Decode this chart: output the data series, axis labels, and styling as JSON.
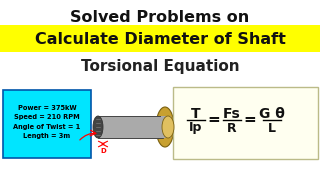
{
  "bg_color": "#ffffff",
  "title_line1": "Solved Problems on",
  "title_line2": "Calculate Diameter of Shaft",
  "title_line3": "Torsional Equation",
  "yellow_bg": "#ffff00",
  "info_box_bg": "#00e5ff",
  "info_box_border": "#0055aa",
  "info_lines": [
    "Power = 375kW",
    "Speed = 210 RPM",
    "Angle of Twist = 1",
    "Length = 3m"
  ],
  "formula_bg": "#fffff0",
  "formula_border": "#bbbb88",
  "shaft_body_color": "#aaaaaa",
  "shaft_end_color": "#555555",
  "shaft_flange_color": "#c8a030",
  "shaft_flange_inner": "#e0c060"
}
